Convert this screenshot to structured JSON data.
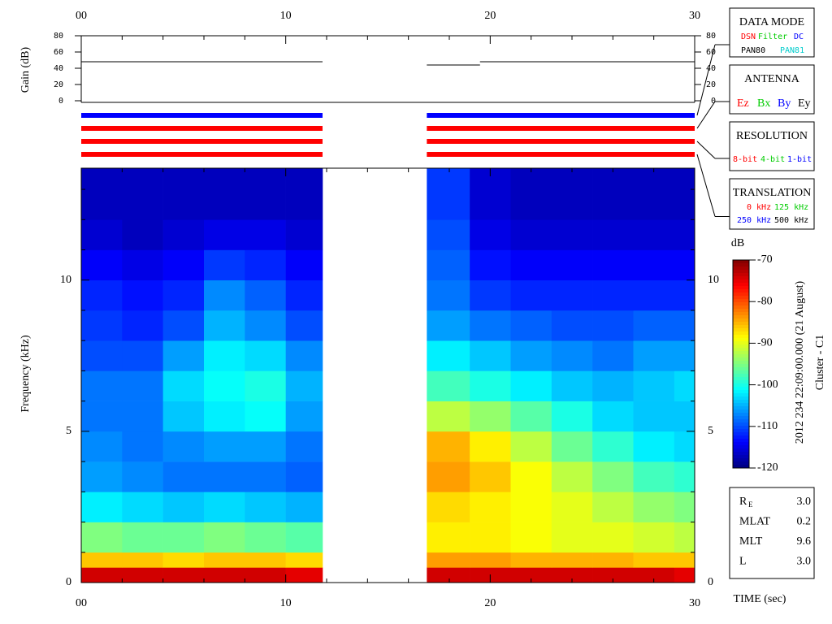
{
  "chart_data": {
    "type": "heatmap",
    "xlabel": "TIME (sec)",
    "ylabel": "Frequency (kHz)",
    "colorbar_label": "dB",
    "side_label": "2012 234 22:09:00.000 (21 August)",
    "side_label2": "Cluster - C1",
    "xlim": [
      0,
      30
    ],
    "xticks": [
      {
        "value": 0,
        "label": "00"
      },
      10,
      20,
      30
    ],
    "xminorticks": [
      2,
      4,
      6,
      8,
      12,
      14,
      16,
      18,
      22,
      24,
      26,
      28
    ],
    "ylim": [
      0,
      13.7
    ],
    "yticks": [
      0,
      5,
      10
    ],
    "yminorticks": [
      1,
      2,
      3,
      4,
      6,
      7,
      8,
      9,
      11,
      12,
      13
    ],
    "zlim": [
      -120,
      -70
    ],
    "zticks": [
      -70,
      -80,
      -90,
      -100,
      -110,
      -120
    ],
    "colormap": "jet",
    "xbins": [
      0,
      2,
      4,
      6,
      8,
      10,
      11.8,
      16.9,
      19,
      21,
      23,
      25,
      27,
      29,
      30
    ],
    "ybins": [
      0,
      0.5,
      1,
      2,
      3,
      4,
      5,
      6,
      7,
      8,
      9,
      10,
      11,
      12,
      13.7
    ],
    "z": [
      [
        -74,
        -74,
        -74,
        -74,
        -74,
        -75,
        null,
        -74,
        -74,
        -74,
        -74,
        -74,
        -74,
        -75
      ],
      [
        -86,
        -86,
        -87,
        -86,
        -86,
        -87,
        null,
        -84,
        -84,
        -85,
        -85,
        -85,
        -86,
        -86
      ],
      [
        -95,
        -96,
        -96,
        -95,
        -96,
        -97,
        null,
        -88,
        -88,
        -89,
        -90,
        -90,
        -91,
        -92
      ],
      [
        -102,
        -103,
        -104,
        -103,
        -104,
        -105,
        null,
        -87,
        -88,
        -89,
        -90,
        -92,
        -94,
        -95
      ],
      [
        -106,
        -107,
        -108,
        -108,
        -108,
        -109,
        null,
        -84,
        -86,
        -89,
        -92,
        -95,
        -98,
        -99
      ],
      [
        -107,
        -108,
        -107,
        -106,
        -106,
        -108,
        null,
        -85,
        -88,
        -92,
        -96,
        -99,
        -102,
        -103
      ],
      [
        -108,
        -108,
        -104,
        -102,
        -101,
        -106,
        null,
        -92,
        -94,
        -97,
        -100,
        -103,
        -104,
        -104
      ],
      [
        -108,
        -108,
        -103,
        -101,
        -100,
        -105,
        null,
        -98,
        -100,
        -102,
        -104,
        -105,
        -104,
        -103
      ],
      [
        -110,
        -110,
        -106,
        -102,
        -103,
        -107,
        null,
        -102,
        -104,
        -106,
        -107,
        -108,
        -106,
        -106
      ],
      [
        -111,
        -112,
        -110,
        -105,
        -107,
        -110,
        null,
        -106,
        -108,
        -109,
        -110,
        -110,
        -109,
        -109
      ],
      [
        -112,
        -113,
        -112,
        -107,
        -109,
        -112,
        null,
        -108,
        -111,
        -112,
        -112,
        -112,
        -112,
        -112
      ],
      [
        -114,
        -115,
        -114,
        -111,
        -112,
        -114,
        null,
        -109,
        -113,
        -114,
        -114,
        -114,
        -114,
        -114
      ],
      [
        -116,
        -117,
        -116,
        -115,
        -115,
        -116,
        null,
        -110,
        -115,
        -116,
        -116,
        -116,
        -116,
        -116
      ],
      [
        -117,
        -117,
        -117,
        -117,
        -117,
        -117,
        null,
        -111,
        -116,
        -117,
        -117,
        -117,
        -117,
        -117
      ]
    ],
    "gain": {
      "ylabel": "Gain (dB)",
      "ylim": [
        0,
        80
      ],
      "yticks": [
        0,
        20,
        40,
        60,
        80
      ],
      "segments": [
        {
          "x": [
            0,
            11.8
          ],
          "y": [
            48,
            48
          ]
        },
        {
          "x": [
            16.9,
            19.5
          ],
          "y": [
            44,
            44
          ]
        },
        {
          "x": [
            19.5,
            30
          ],
          "y": [
            48,
            48
          ]
        }
      ]
    },
    "mode_bars": [
      {
        "color": "#0000ff",
        "segments": [
          [
            0,
            11.8
          ],
          [
            16.9,
            30
          ]
        ]
      },
      {
        "color": "#ff0000",
        "segments": [
          [
            0,
            11.8
          ],
          [
            16.9,
            30
          ]
        ]
      },
      {
        "color": "#ff0000",
        "segments": [
          [
            0,
            11.8
          ],
          [
            16.9,
            30
          ]
        ]
      },
      {
        "color": "#ff0000",
        "segments": [
          [
            0,
            11.8
          ],
          [
            16.9,
            30
          ]
        ]
      }
    ]
  },
  "legend_boxes": [
    {
      "title": "DATA MODE",
      "items": [
        {
          "text": "DSN",
          "color": "#ff0000"
        },
        {
          "text": "Filter",
          "color": "#00cc00"
        },
        {
          "text": "DC",
          "color": "#0000ff"
        },
        {
          "text": "PAN80",
          "color": "#000000"
        },
        {
          "text": "PAN81",
          "color": "#00cccc"
        }
      ]
    },
    {
      "title": "ANTENNA",
      "items": [
        {
          "text": "Ez",
          "color": "#ff0000"
        },
        {
          "text": "Bx",
          "color": "#00cc00"
        },
        {
          "text": "By",
          "color": "#0000ff"
        },
        {
          "text": "Ey",
          "color": "#000000"
        }
      ]
    },
    {
      "title": "RESOLUTION",
      "items": [
        {
          "text": "8-bit",
          "color": "#ff0000"
        },
        {
          "text": "4-bit",
          "color": "#00cc00"
        },
        {
          "text": "1-bit",
          "color": "#0000ff"
        }
      ]
    },
    {
      "title": "TRANSLATION",
      "items": [
        {
          "text": "0 kHz",
          "color": "#ff0000"
        },
        {
          "text": "125 kHz",
          "color": "#00cc00"
        },
        {
          "text": "250 kHz",
          "color": "#0000ff"
        },
        {
          "text": "500 kHz",
          "color": "#000000"
        }
      ]
    }
  ],
  "info": [
    {
      "label": "R",
      "sub": "E",
      "value": "3.0"
    },
    {
      "label": "MLAT",
      "value": "0.2"
    },
    {
      "label": "MLT",
      "value": "9.6"
    },
    {
      "label": "L",
      "value": "3.0"
    }
  ]
}
